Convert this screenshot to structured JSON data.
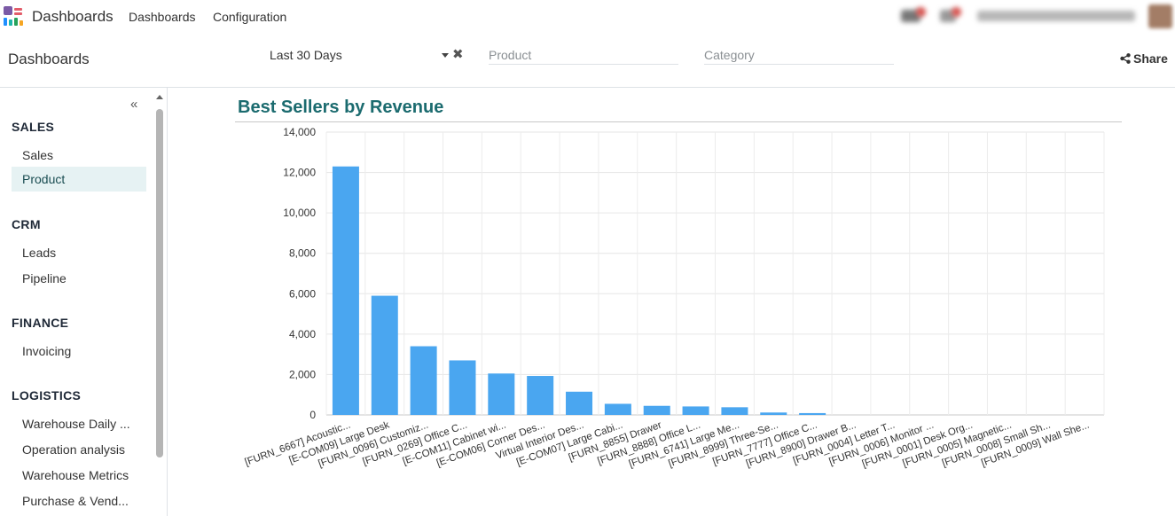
{
  "navbar": {
    "app_title": "Dashboards",
    "menu": [
      "Dashboards",
      "Configuration"
    ]
  },
  "control_panel": {
    "breadcrumb": "Dashboards",
    "date_filter": "Last 30 Days",
    "product_placeholder": "Product",
    "category_placeholder": "Category",
    "share_label": "Share"
  },
  "sidebar": {
    "collapse_glyph": "«",
    "sections": [
      {
        "title": "SALES",
        "items": [
          "Sales",
          "Product"
        ]
      },
      {
        "title": "CRM",
        "items": [
          "Leads",
          "Pipeline"
        ]
      },
      {
        "title": "FINANCE",
        "items": [
          "Invoicing"
        ]
      },
      {
        "title": "LOGISTICS",
        "items": [
          "Warehouse Daily ...",
          "Operation analysis",
          "Warehouse Metrics",
          "Purchase & Vend..."
        ]
      }
    ],
    "active_item": "Product"
  },
  "colors": {
    "accent": "#1b6b6f",
    "bar": "#4aa6f0",
    "active_bg": "#e6f2f3"
  },
  "chart_title": "Best Sellers by Revenue",
  "chart_data": {
    "type": "bar",
    "title": "Best Sellers by Revenue",
    "xlabel": "",
    "ylabel": "",
    "ylim": [
      0,
      14000
    ],
    "yticks": [
      0,
      2000,
      4000,
      6000,
      8000,
      10000,
      12000,
      14000
    ],
    "ytick_labels": [
      "0",
      "2,000",
      "4,000",
      "6,000",
      "8,000",
      "10,000",
      "12,000",
      "14,000"
    ],
    "grid": true,
    "categories": [
      "[FURN_6667] Acoustic...",
      "[E-COM09] Large Desk",
      "[FURN_0096] Customiz...",
      "[FURN_0269] Office C...",
      "[E-COM11] Cabinet wi...",
      "[E-COM06] Corner Des...",
      "Virtual Interior Des...",
      "[E-COM07] Large Cabi...",
      "[FURN_8855] Drawer",
      "[FURN_8888] Office L...",
      "[FURN_6741] Large Me...",
      "[FURN_8999] Three-Se...",
      "[FURN_7777] Office C...",
      "[FURN_8900] Drawer B...",
      "[FURN_0004] Letter T...",
      "[FURN_0006] Monitor ...",
      "[FURN_0001] Desk Org...",
      "[FURN_0005] Magnetic...",
      "[FURN_0008] Small Sh...",
      "[FURN_0009] Wall She..."
    ],
    "values": [
      12300,
      5900,
      3400,
      2700,
      2050,
      1930,
      1150,
      550,
      450,
      420,
      380,
      120,
      90,
      0,
      0,
      0,
      0,
      0,
      0,
      0
    ]
  }
}
